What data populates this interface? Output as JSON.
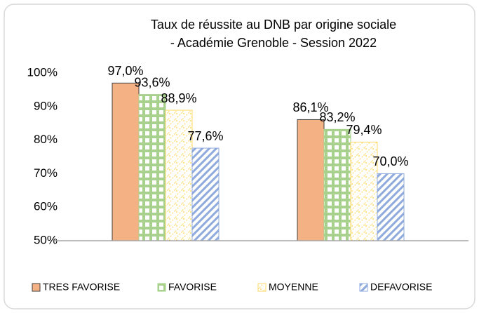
{
  "chart_data": {
    "type": "bar",
    "title": [
      "Taux de réussite au DNB par origine sociale",
      "- Académie Grenoble - Session 2022"
    ],
    "categories": [
      null,
      null
    ],
    "series": [
      {
        "name": "TRES FAVORISE",
        "color": "#f4b183",
        "pattern": "solid",
        "values": [
          97.0,
          86.1
        ],
        "value_labels": [
          "97,0%",
          "86,1%"
        ]
      },
      {
        "name": "FAVORISE",
        "color": "#a9d18e",
        "pattern": "cross",
        "values": [
          93.6,
          83.2
        ],
        "value_labels": [
          "93,6%",
          "83,2%"
        ]
      },
      {
        "name": "MOYENNE",
        "color": "#ffd966",
        "pattern": "dots",
        "values": [
          88.9,
          79.4
        ],
        "value_labels": [
          "88,9%",
          "79,4%"
        ]
      },
      {
        "name": "DEFAVORISE",
        "color": "#8faadc",
        "pattern": "diagonal",
        "values": [
          77.6,
          70.0
        ],
        "value_labels": [
          "77,6%",
          "70,0%"
        ]
      }
    ],
    "ylim": [
      50,
      100
    ],
    "yticks": [
      {
        "value": 50,
        "label": "50%"
      },
      {
        "value": 60,
        "label": "60%"
      },
      {
        "value": 70,
        "label": "70%"
      },
      {
        "value": 80,
        "label": "80%"
      },
      {
        "value": 90,
        "label": "90%"
      },
      {
        "value": 100,
        "label": "100%"
      }
    ],
    "grid": false,
    "legend": "bottom"
  }
}
